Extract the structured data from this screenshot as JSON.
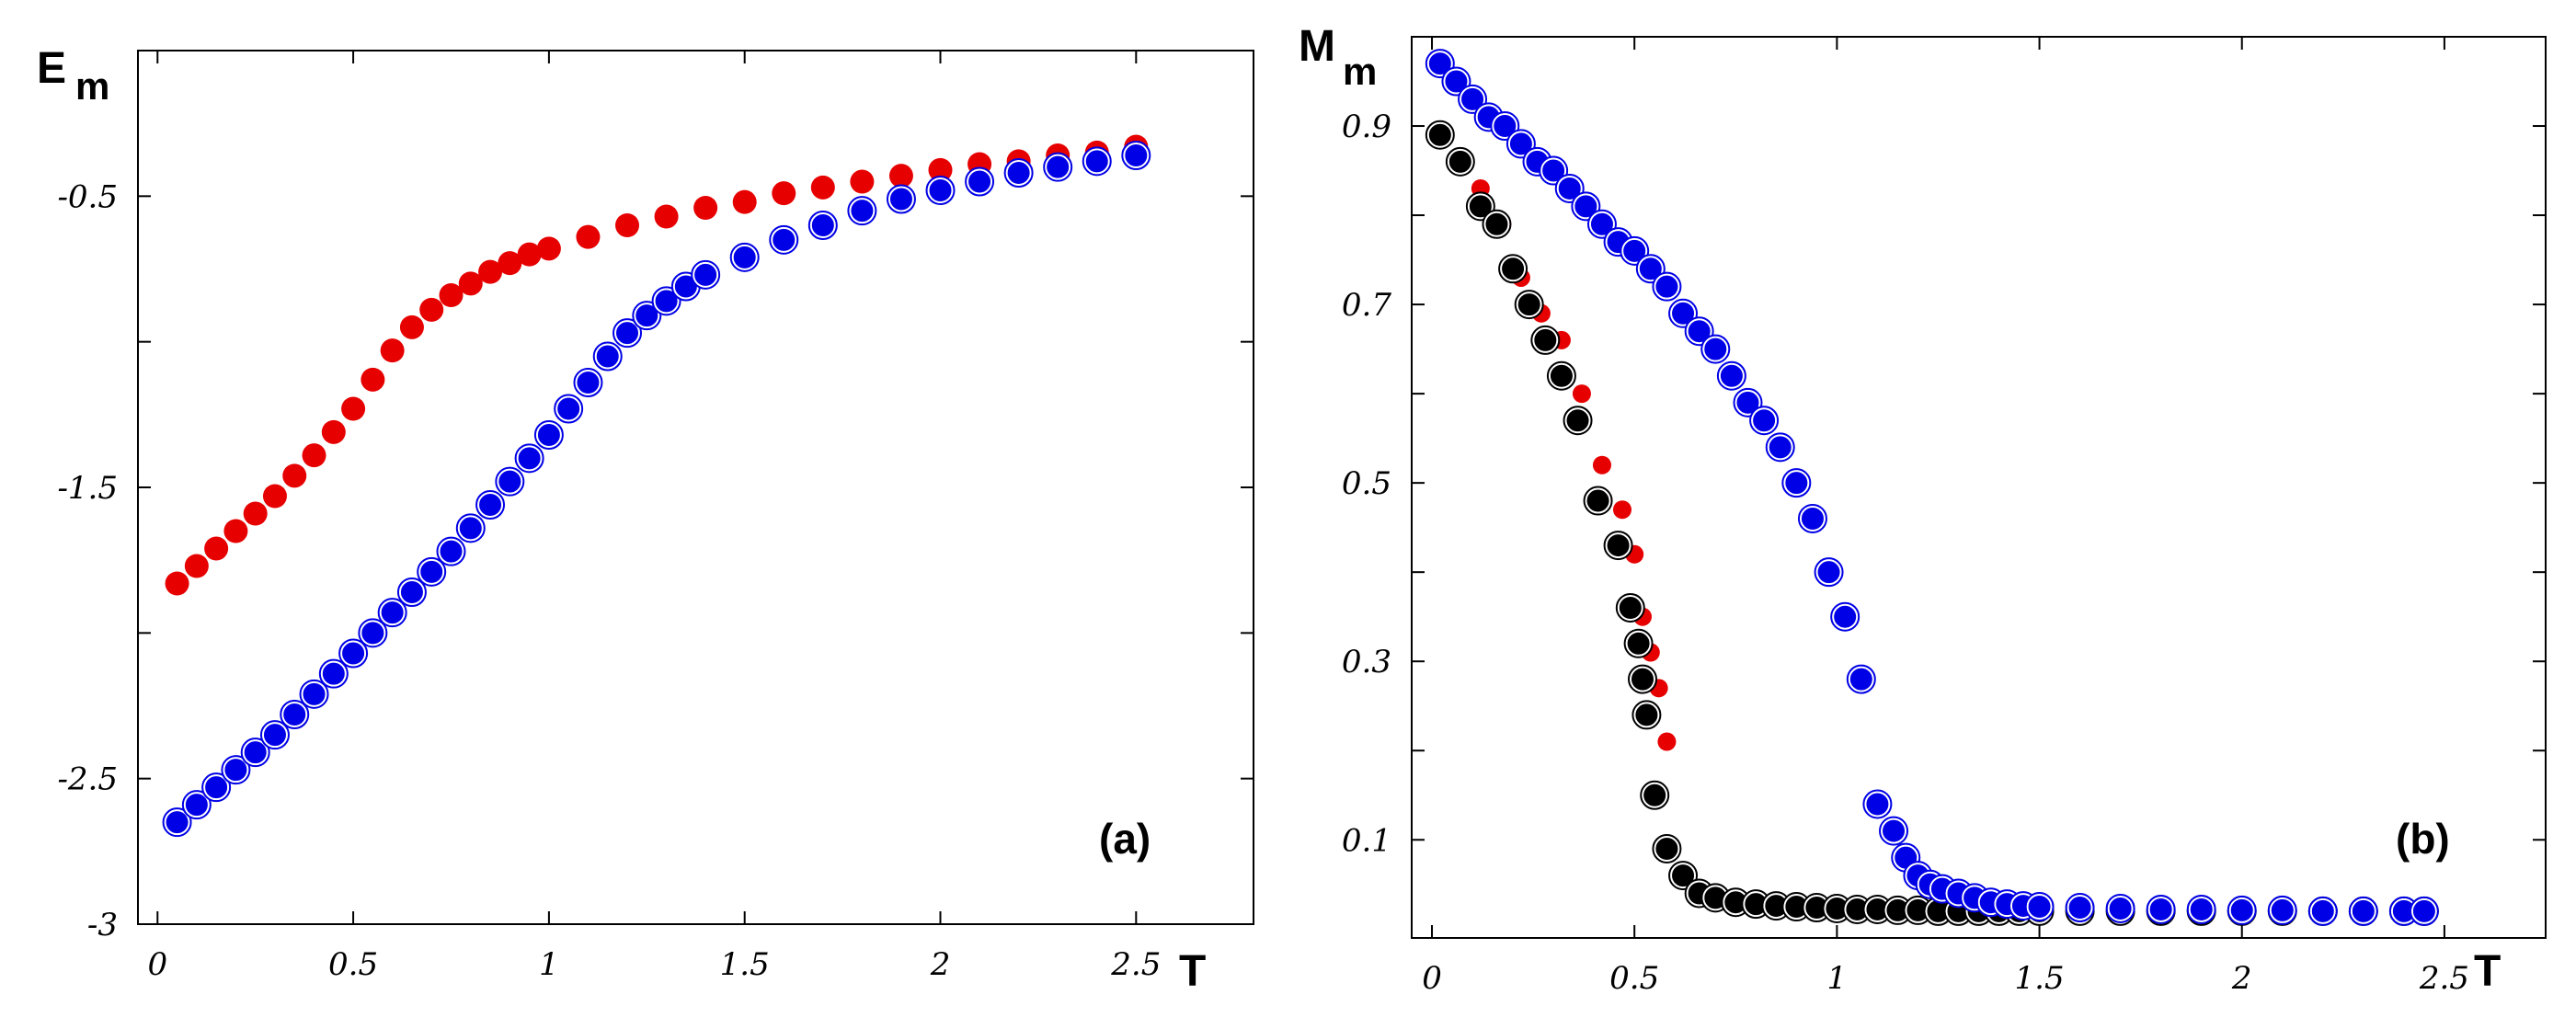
{
  "chart_data": [
    {
      "type": "scatter",
      "panel_label": "(a)",
      "ylabel": "E",
      "ylabel_sub": "m",
      "xlabel": "T",
      "xlim": [
        -0.05,
        2.8
      ],
      "ylim": [
        -3.0,
        0.0
      ],
      "xticks": [
        0,
        0.5,
        1,
        1.5,
        2,
        2.5
      ],
      "xtick_labels": [
        "0",
        "0.5",
        "1",
        "1.5",
        "2",
        "2.5"
      ],
      "yticks": [
        -0.5,
        -1.5,
        -2.5,
        -3
      ],
      "ytick_labels": [
        "-0.5",
        "-1.5",
        "-2.5",
        "-3"
      ],
      "minor_yticks": [
        -1.0,
        -2.0
      ],
      "series": [
        {
          "name": "red",
          "color": "#e60000",
          "marker": "filled",
          "x": [
            0.05,
            0.1,
            0.15,
            0.2,
            0.25,
            0.3,
            0.35,
            0.4,
            0.45,
            0.5,
            0.55,
            0.6,
            0.65,
            0.7,
            0.75,
            0.8,
            0.85,
            0.9,
            0.95,
            1.0,
            1.1,
            1.2,
            1.3,
            1.4,
            1.5,
            1.6,
            1.7,
            1.8,
            1.9,
            2.0,
            2.1,
            2.2,
            2.3,
            2.4,
            2.5
          ],
          "values": [
            -1.83,
            -1.77,
            -1.71,
            -1.65,
            -1.59,
            -1.53,
            -1.46,
            -1.39,
            -1.31,
            -1.23,
            -1.13,
            -1.03,
            -0.95,
            -0.89,
            -0.84,
            -0.8,
            -0.76,
            -0.73,
            -0.7,
            -0.68,
            -0.64,
            -0.6,
            -0.57,
            -0.54,
            -0.52,
            -0.49,
            -0.47,
            -0.45,
            -0.43,
            -0.41,
            -0.39,
            -0.38,
            -0.36,
            -0.35,
            -0.33
          ]
        },
        {
          "name": "blue",
          "color": "#0000e6",
          "marker": "ringed",
          "x": [
            0.05,
            0.1,
            0.15,
            0.2,
            0.25,
            0.3,
            0.35,
            0.4,
            0.45,
            0.5,
            0.55,
            0.6,
            0.65,
            0.7,
            0.75,
            0.8,
            0.85,
            0.9,
            0.95,
            1.0,
            1.05,
            1.1,
            1.15,
            1.2,
            1.25,
            1.3,
            1.35,
            1.4,
            1.5,
            1.6,
            1.7,
            1.8,
            1.9,
            2.0,
            2.1,
            2.2,
            2.3,
            2.4,
            2.5
          ],
          "values": [
            -2.65,
            -2.59,
            -2.53,
            -2.47,
            -2.41,
            -2.35,
            -2.28,
            -2.21,
            -2.14,
            -2.07,
            -2.0,
            -1.93,
            -1.86,
            -1.79,
            -1.72,
            -1.64,
            -1.56,
            -1.48,
            -1.4,
            -1.32,
            -1.23,
            -1.14,
            -1.05,
            -0.97,
            -0.91,
            -0.86,
            -0.81,
            -0.77,
            -0.71,
            -0.65,
            -0.6,
            -0.55,
            -0.51,
            -0.48,
            -0.45,
            -0.42,
            -0.4,
            -0.38,
            -0.36
          ]
        }
      ]
    },
    {
      "type": "scatter",
      "panel_label": "(b)",
      "ylabel": "M",
      "ylabel_sub": "m",
      "xlabel": "T",
      "xlim": [
        -0.05,
        2.75
      ],
      "ylim": [
        -0.01,
        1.0
      ],
      "xticks": [
        0,
        0.5,
        1,
        1.5,
        2,
        2.5
      ],
      "xtick_labels": [
        "0",
        "0.5",
        "1",
        "1.5",
        "2",
        "2.5"
      ],
      "yticks": [
        0.9,
        0.7,
        0.5,
        0.3,
        0.1
      ],
      "ytick_labels": [
        "0.9",
        "0.7",
        "0.5",
        "0.3",
        "0.1"
      ],
      "minor_yticks": [
        0.8,
        0.6,
        0.4,
        0.2
      ],
      "series": [
        {
          "name": "red",
          "color": "#e60000",
          "marker": "small",
          "x": [
            0.02,
            0.07,
            0.12,
            0.17,
            0.22,
            0.27,
            0.32,
            0.37,
            0.42,
            0.47,
            0.5,
            0.52,
            0.54,
            0.56,
            0.58
          ],
          "values": [
            0.89,
            0.86,
            0.83,
            0.79,
            0.73,
            0.69,
            0.66,
            0.6,
            0.52,
            0.47,
            0.42,
            0.35,
            0.31,
            0.27,
            0.21
          ]
        },
        {
          "name": "black",
          "color": "#000000",
          "marker": "ringed",
          "x": [
            0.02,
            0.07,
            0.12,
            0.16,
            0.2,
            0.24,
            0.28,
            0.32,
            0.36,
            0.41,
            0.46,
            0.49,
            0.51,
            0.52,
            0.53,
            0.55,
            0.58,
            0.62,
            0.66,
            0.7,
            0.75,
            0.8,
            0.85,
            0.9,
            0.95,
            1.0,
            1.05,
            1.1,
            1.15,
            1.2,
            1.25,
            1.3,
            1.35,
            1.4,
            1.45,
            1.5,
            1.6,
            1.7,
            1.8,
            1.9,
            2.0,
            2.1,
            2.2,
            2.3,
            2.4,
            2.45
          ],
          "values": [
            0.89,
            0.86,
            0.81,
            0.79,
            0.74,
            0.7,
            0.66,
            0.62,
            0.57,
            0.48,
            0.43,
            0.36,
            0.32,
            0.28,
            0.24,
            0.15,
            0.09,
            0.06,
            0.04,
            0.035,
            0.03,
            0.028,
            0.026,
            0.025,
            0.024,
            0.023,
            0.022,
            0.022,
            0.021,
            0.021,
            0.02,
            0.02,
            0.02,
            0.02,
            0.02,
            0.02,
            0.02,
            0.02,
            0.02,
            0.02,
            0.02,
            0.02,
            0.02,
            0.02,
            0.02,
            0.02
          ]
        },
        {
          "name": "blue",
          "color": "#0000e6",
          "marker": "ringed",
          "x": [
            0.02,
            0.06,
            0.1,
            0.14,
            0.18,
            0.22,
            0.26,
            0.3,
            0.34,
            0.38,
            0.42,
            0.46,
            0.5,
            0.54,
            0.58,
            0.62,
            0.66,
            0.7,
            0.74,
            0.78,
            0.82,
            0.86,
            0.9,
            0.94,
            0.98,
            1.02,
            1.06,
            1.1,
            1.14,
            1.17,
            1.2,
            1.23,
            1.26,
            1.3,
            1.34,
            1.38,
            1.42,
            1.46,
            1.5,
            1.6,
            1.7,
            1.8,
            1.9,
            2.0,
            2.1,
            2.2,
            2.3,
            2.4,
            2.45
          ],
          "values": [
            0.97,
            0.95,
            0.93,
            0.91,
            0.9,
            0.88,
            0.86,
            0.85,
            0.83,
            0.81,
            0.79,
            0.77,
            0.76,
            0.74,
            0.72,
            0.69,
            0.67,
            0.65,
            0.62,
            0.59,
            0.57,
            0.54,
            0.5,
            0.46,
            0.4,
            0.35,
            0.28,
            0.14,
            0.11,
            0.08,
            0.06,
            0.05,
            0.045,
            0.04,
            0.035,
            0.03,
            0.028,
            0.026,
            0.025,
            0.024,
            0.023,
            0.022,
            0.022,
            0.021,
            0.021,
            0.02,
            0.02,
            0.02,
            0.02
          ]
        }
      ]
    }
  ]
}
